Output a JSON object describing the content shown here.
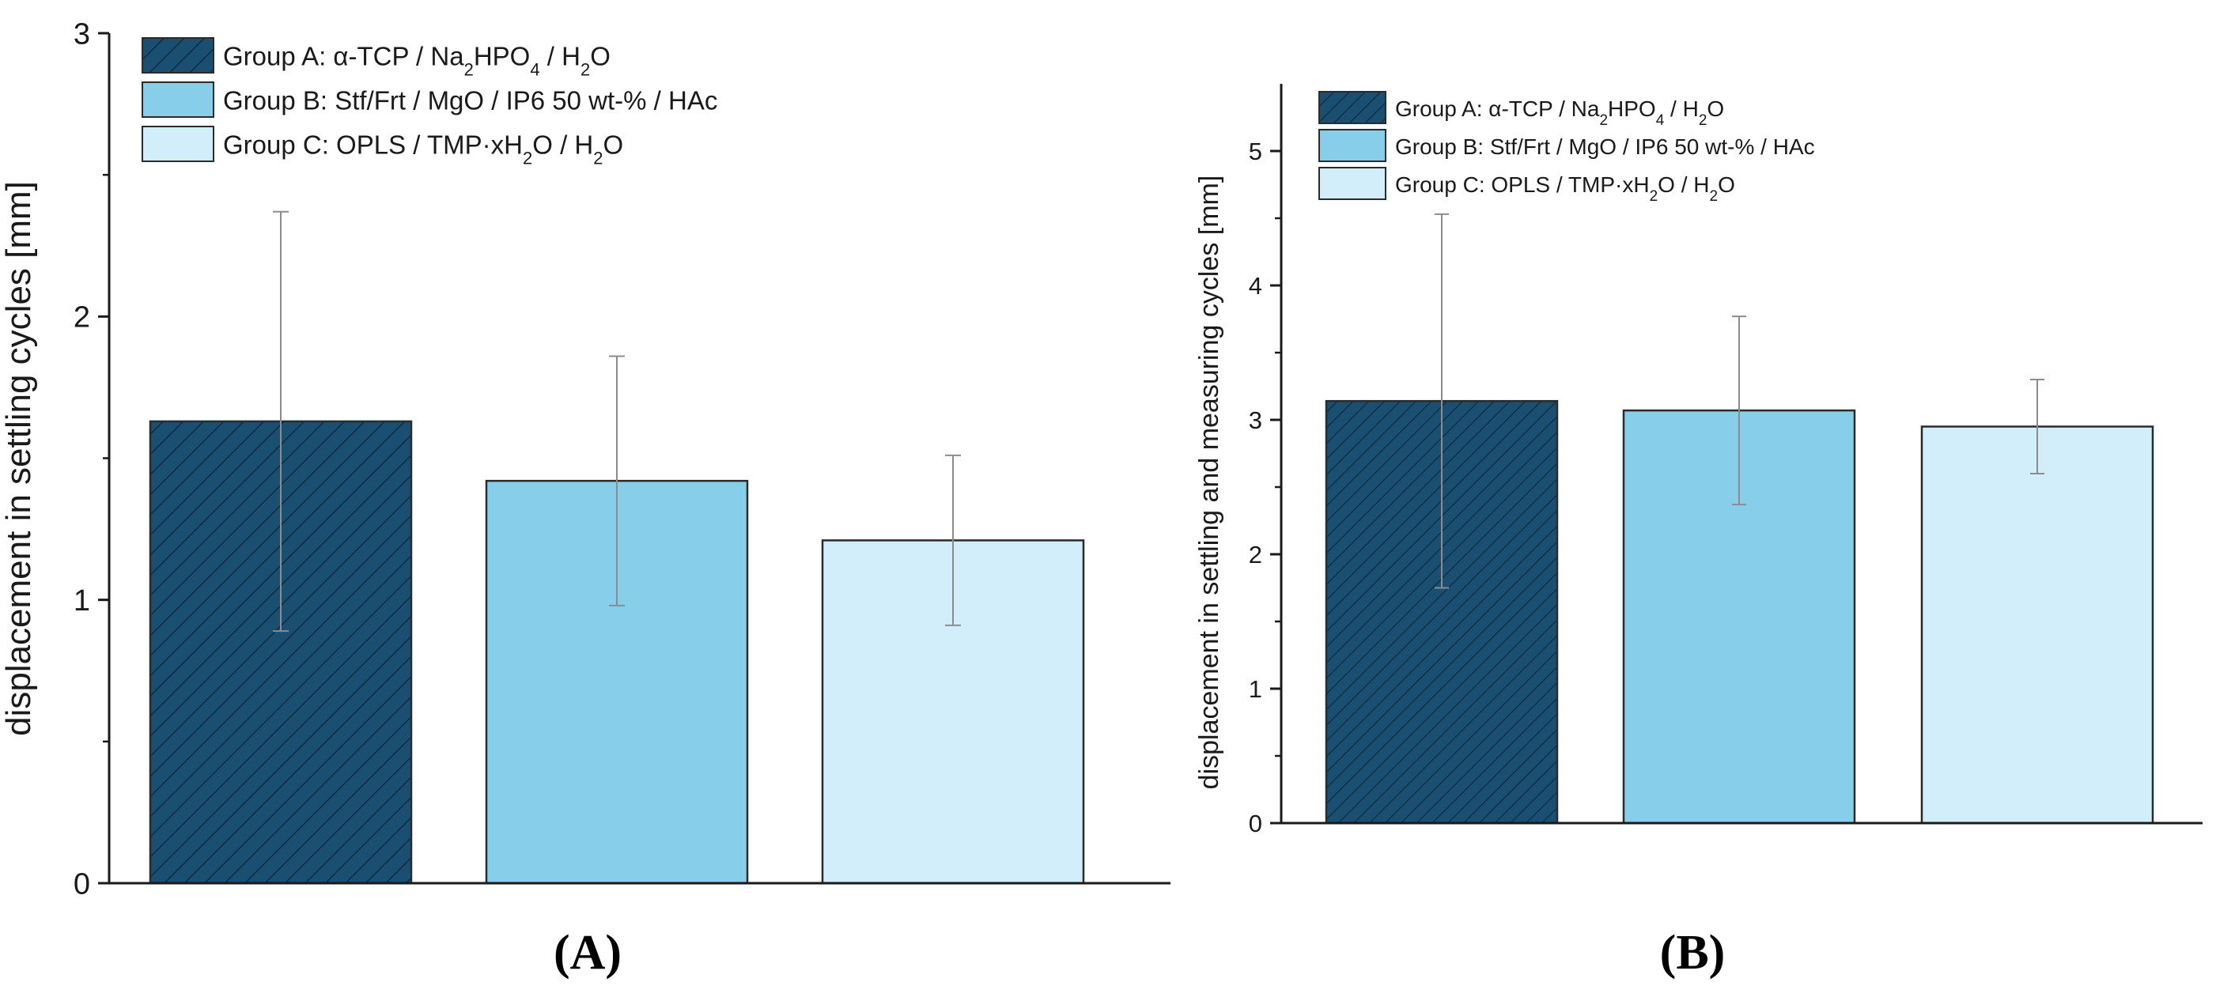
{
  "chart_data": [
    {
      "panel_label": "(A)",
      "type": "bar",
      "title": "",
      "xlabel": "",
      "ylabel": "displacement in settling cycles [mm]",
      "ylim": [
        0,
        3
      ],
      "yticks": [
        "0",
        "1",
        "2",
        "3"
      ],
      "categories": [
        "Group A",
        "Group B",
        "Group C"
      ],
      "values": [
        1.63,
        1.42,
        1.21
      ],
      "errors": [
        0.74,
        0.44,
        0.3
      ],
      "legend_position": "top-left",
      "legend": [
        {
          "prefix": "Group A: α-TCP / Na",
          "sub1": "2",
          "mid1": "HPO",
          "sub2": "4",
          "mid2": " / H",
          "sub3": "2",
          "suffix": "O"
        },
        {
          "prefix": "Group B: Stf/Frt / MgO / IP6 50 wt-% / HAc",
          "sub1": "",
          "mid1": "",
          "sub2": "",
          "mid2": "",
          "sub3": "",
          "suffix": ""
        },
        {
          "prefix": "Group C: OPLS / TMP·xH",
          "sub1": "2",
          "mid1": "O / H",
          "sub2": "2",
          "mid2": "O",
          "sub3": "",
          "suffix": ""
        }
      ]
    },
    {
      "panel_label": "(B)",
      "type": "bar",
      "title": "",
      "xlabel": "",
      "ylabel": "displacement in settling and measuring cycles [mm]",
      "ylim": [
        0,
        5.5
      ],
      "yticks": [
        "0",
        "1",
        "2",
        "3",
        "4",
        "5"
      ],
      "categories": [
        "Group A",
        "Group B",
        "Group C"
      ],
      "values": [
        3.14,
        3.07,
        2.95
      ],
      "errors": [
        1.39,
        0.7,
        0.35
      ],
      "legend_position": "top-left",
      "legend": [
        {
          "prefix": "Group A: α-TCP / Na",
          "sub1": "2",
          "mid1": "HPO",
          "sub2": "4",
          "mid2": " / H",
          "sub3": "2",
          "suffix": "O"
        },
        {
          "prefix": "Group B: Stf/Frt / MgO / IP6 50 wt-% / HAc",
          "sub1": "",
          "mid1": "",
          "sub2": "",
          "mid2": "",
          "sub3": "",
          "suffix": ""
        },
        {
          "prefix": "Group C: OPLS / TMP·xH",
          "sub1": "2",
          "mid1": "O / H",
          "sub2": "2",
          "mid2": "O",
          "sub3": "",
          "suffix": ""
        }
      ]
    }
  ],
  "colors": {
    "group_a": "#1b4f72",
    "group_b": "#87ceeb",
    "group_c": "#d2eefa",
    "hatch": "#0d2b40",
    "bar_edge": "#2b2b2b",
    "error_bar": "#8c8c8c",
    "axis": "#1a1a1a"
  }
}
